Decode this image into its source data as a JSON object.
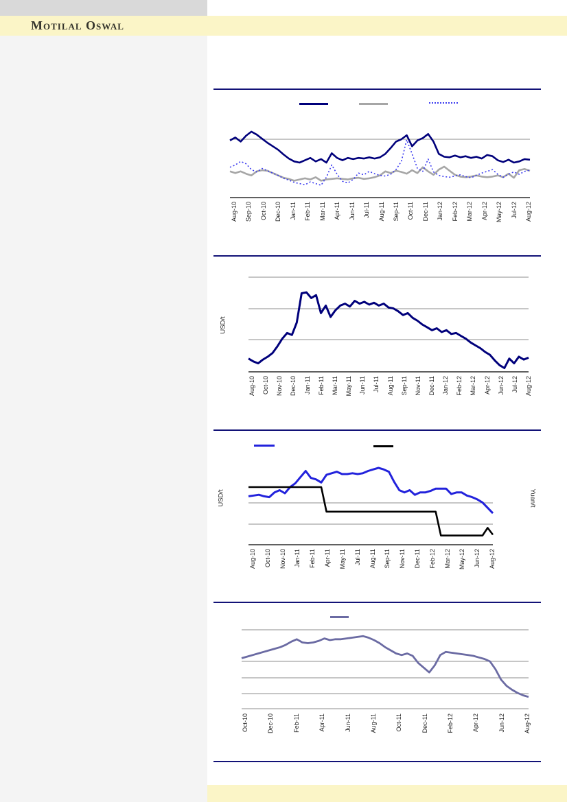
{
  "brand": {
    "name": "Motilal Oswal"
  },
  "colors": {
    "banner_yellow": "#fbf5c7",
    "panel_gray": "#f4f4f4",
    "header_gray": "#d9d9d9",
    "rule_navy": "#121277",
    "grid_gray": "#8c8c8c",
    "axis_black": "#000000"
  },
  "chart_data": [
    {
      "id": "chart-1",
      "type": "line",
      "title": "",
      "x_range": "Aug-10 to Aug-12",
      "y_axis_note": "no y tick labels visible; series values normalized 0-100 of plot height (100 = top gridline)",
      "legend": {
        "position": "top",
        "entries_have_no_text": true
      },
      "categories": [
        "Aug-10",
        "Sep-10",
        "Oct-10",
        "Dec-10",
        "Jan-11",
        "Feb-11",
        "Mar-11",
        "Apr-11",
        "Jun-11",
        "Jul-11",
        "Aug-11",
        "Sep-11",
        "Oct-11",
        "Dec-11",
        "Jan-12",
        "Feb-12",
        "Mar-12",
        "Apr-12",
        "May-12",
        "Jul-12",
        "Aug-12"
      ],
      "series": [
        {
          "name": "navy-solid",
          "label": "",
          "color": "#00007b",
          "width": 2.6,
          "values": [
            98,
            103,
            96,
            106,
            113,
            108,
            101,
            94,
            88,
            82,
            74,
            67,
            62,
            60,
            64,
            68,
            62,
            66,
            60,
            76,
            68,
            64,
            68,
            66,
            68,
            67,
            69,
            67,
            69,
            75,
            85,
            96,
            100,
            107,
            88,
            98,
            102,
            109,
            96,
            75,
            70,
            69,
            72,
            69,
            71,
            68,
            70,
            67,
            73,
            71,
            64,
            61,
            65,
            60,
            62,
            66,
            65
          ]
        },
        {
          "name": "gray-solid",
          "label": "",
          "color": "#a6a6a6",
          "width": 2.6,
          "values": [
            45,
            42,
            45,
            41,
            38,
            45,
            47,
            46,
            42,
            38,
            34,
            32,
            29,
            31,
            33,
            31,
            35,
            29,
            31,
            32,
            33,
            32,
            31,
            33,
            34,
            32,
            33,
            35,
            38,
            45,
            42,
            46,
            44,
            41,
            47,
            42,
            52,
            45,
            39,
            48,
            53,
            46,
            39,
            36,
            35,
            36,
            38,
            36,
            35,
            36,
            38,
            35,
            41,
            34,
            47,
            49,
            46
          ]
        },
        {
          "name": "blue-dotted",
          "label": "",
          "color": "#3a3af0",
          "width": 1.6,
          "dash": "2,3",
          "values": [
            52,
            56,
            62,
            58,
            48,
            44,
            50,
            46,
            42,
            38,
            33,
            30,
            26,
            24,
            22,
            27,
            24,
            21,
            35,
            56,
            40,
            28,
            25,
            31,
            42,
            39,
            45,
            41,
            38,
            37,
            40,
            48,
            62,
            99,
            75,
            50,
            45,
            66,
            44,
            38,
            36,
            35,
            37,
            39,
            36,
            34,
            38,
            42,
            45,
            48,
            40,
            35,
            40,
            44,
            40,
            45,
            47
          ]
        }
      ]
    },
    {
      "id": "chart-2",
      "type": "line",
      "title": "",
      "ylabel": "USD/t",
      "x_range": "Aug-10 to Aug-12",
      "y_axis_note": "no y tick labels visible; series values normalized 0-100 of plot height (100 = top gridline)",
      "categories": [
        "Aug-10",
        "Oct-10",
        "Nov-10",
        "Dec-10",
        "Jan-11",
        "Feb-11",
        "Mar-11",
        "May-11",
        "Jun-11",
        "Jul-11",
        "Aug-11",
        "Sep-11",
        "Nov-11",
        "Dec-11",
        "Jan-12",
        "Feb-12",
        "Mar-12",
        "Apr-12",
        "Jun-12",
        "Jul-12",
        "Aug-12"
      ],
      "series": [
        {
          "name": "navy-solid",
          "label": "",
          "color": "#00007b",
          "width": 3,
          "values": [
            14,
            11,
            9,
            13,
            16,
            20,
            27,
            35,
            41,
            39,
            52,
            83,
            84,
            78,
            81,
            62,
            70,
            58,
            65,
            70,
            72,
            69,
            75,
            72,
            74,
            71,
            73,
            70,
            72,
            68,
            67,
            64,
            60,
            62,
            57,
            54,
            50,
            47,
            44,
            46,
            42,
            44,
            40,
            41,
            38,
            35,
            31,
            28,
            25,
            21,
            18,
            12,
            7,
            4,
            14,
            9,
            16,
            13,
            15
          ]
        }
      ]
    },
    {
      "id": "chart-3",
      "type": "line",
      "title": "",
      "ylabel_left": "USD/t",
      "ylabel_right": "Yuan/t",
      "x_range": "Aug-10 to Aug-12",
      "y_axis_note": "no y tick labels visible; series values normalized 0-100 of plot height",
      "legend": {
        "position": "top",
        "entries_have_no_text": true
      },
      "categories": [
        "Aug-10",
        "Oct-10",
        "Nov-10",
        "Jan-11",
        "Feb-11",
        "Apr-11",
        "May-11",
        "Jul-11",
        "Aug-11",
        "Sep-11",
        "Nov-11",
        "Dec-11",
        "Feb-12",
        "Mar-12",
        "May-12",
        "Jun-12",
        "Aug-12"
      ],
      "series": [
        {
          "name": "blue-solid",
          "label": "",
          "color": "#2222dc",
          "width": 3,
          "values": [
            63,
            64,
            65,
            63,
            62,
            68,
            71,
            67,
            75,
            80,
            88,
            96,
            87,
            85,
            81,
            91,
            93,
            95,
            92,
            92,
            93,
            92,
            93,
            96,
            98,
            100,
            98,
            95,
            82,
            71,
            68,
            71,
            65,
            68,
            68,
            70,
            73,
            73,
            73,
            66,
            68,
            68,
            64,
            62,
            59,
            55,
            48,
            41
          ]
        },
        {
          "name": "black-step",
          "label": "",
          "color": "#000000",
          "width": 2.6,
          "values": [
            75,
            75,
            75,
            75,
            75,
            75,
            75,
            75,
            75,
            75,
            75,
            75,
            75,
            75,
            75,
            43,
            43,
            43,
            43,
            43,
            43,
            43,
            43,
            43,
            43,
            43,
            43,
            43,
            43,
            43,
            43,
            43,
            43,
            43,
            43,
            43,
            43,
            12,
            12,
            12,
            12,
            12,
            12,
            12,
            12,
            12,
            22,
            13
          ]
        }
      ]
    },
    {
      "id": "chart-4",
      "type": "line",
      "title": "",
      "x_range": "Oct-10 to Aug-12",
      "y_axis_note": "no y tick labels visible; series values normalized 0-100 of plot height (100 = top gridline)",
      "legend": {
        "position": "top",
        "entries_have_no_text": true
      },
      "categories": [
        "Oct-10",
        "Dec-10",
        "Feb-11",
        "Apr-11",
        "Jun-11",
        "Aug-11",
        "Oct-11",
        "Dec-11",
        "Feb-12",
        "Apr-12",
        "Jun-12",
        "Aug-12"
      ],
      "series": [
        {
          "name": "slate-solid",
          "label": "",
          "color": "#6b6ba3",
          "width": 2.8,
          "values": [
            64,
            66,
            68,
            70,
            72,
            74,
            76,
            78,
            81,
            85,
            88,
            84,
            83,
            84,
            86,
            89,
            87,
            88,
            88,
            89,
            90,
            91,
            92,
            90,
            87,
            83,
            78,
            74,
            70,
            68,
            70,
            67,
            58,
            52,
            46,
            55,
            68,
            72,
            71,
            70,
            69,
            68,
            67,
            65,
            63,
            60,
            50,
            37,
            29,
            24,
            20,
            17,
            15
          ]
        }
      ]
    }
  ]
}
